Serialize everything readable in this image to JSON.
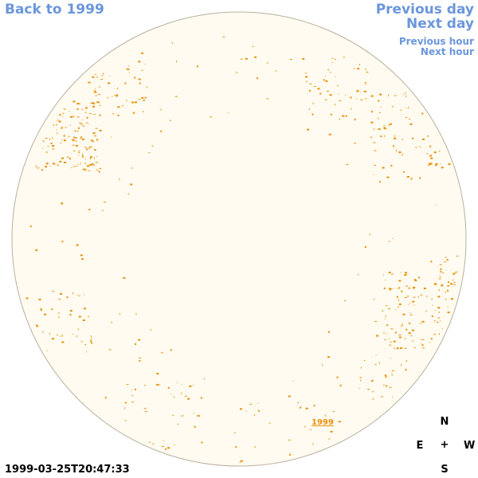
{
  "nav": {
    "back": "Back to 1999",
    "previous_day": "Previous day",
    "next_day": "Next day",
    "previous_hour": "Previous hour",
    "next_hour": "Next hour"
  },
  "timestamp": "1999-03-25T20:47:33",
  "compass": {
    "north": "N",
    "south": "S",
    "east": "E",
    "west": "W",
    "center": "+"
  },
  "disk_year_label": "1999",
  "colors": {
    "disk_fill": "#fffbf0",
    "disk_edge": "#b8b0a0",
    "feature": "#e8900a",
    "link": "#6b96dc"
  },
  "icons": {
    "disk": "solar-disk-icon",
    "feature": "sunspot-feature-icon"
  }
}
